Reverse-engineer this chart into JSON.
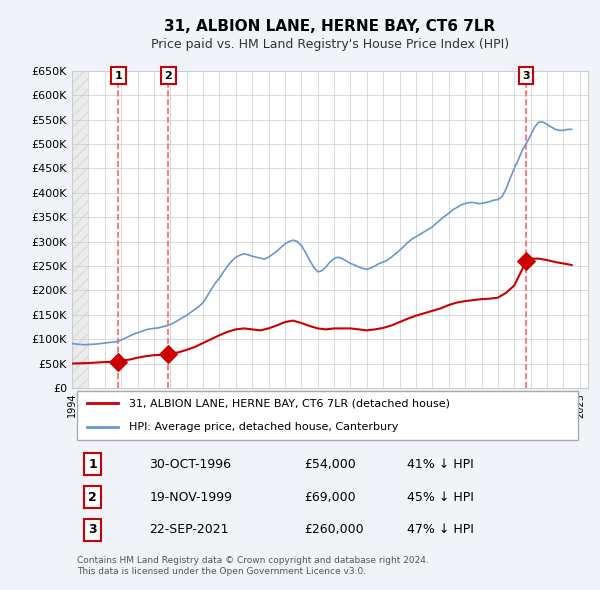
{
  "title": "31, ALBION LANE, HERNE BAY, CT6 7LR",
  "subtitle": "Price paid vs. HM Land Registry's House Price Index (HPI)",
  "legend_line1": "31, ALBION LANE, HERNE BAY, CT6 7LR (detached house)",
  "legend_line2": "HPI: Average price, detached house, Canterbury",
  "footer": "Contains HM Land Registry data © Crown copyright and database right 2024.\nThis data is licensed under the Open Government Licence v3.0.",
  "ylim": [
    0,
    650000
  ],
  "yticks": [
    0,
    50000,
    100000,
    150000,
    200000,
    250000,
    300000,
    350000,
    400000,
    450000,
    500000,
    550000,
    600000,
    650000
  ],
  "ytick_labels": [
    "£0",
    "£50K",
    "£100K",
    "£150K",
    "£200K",
    "£250K",
    "£300K",
    "£350K",
    "£400K",
    "£450K",
    "£500K",
    "£550K",
    "£600K",
    "£650K"
  ],
  "xlim_start": 1994.0,
  "xlim_end": 2025.5,
  "sale_dates": [
    1996.83,
    1999.89,
    2021.73
  ],
  "sale_prices": [
    54000,
    69000,
    260000
  ],
  "sale_labels": [
    "1",
    "2",
    "3"
  ],
  "sale_date_strs": [
    "30-OCT-1996",
    "19-NOV-1999",
    "22-SEP-2021"
  ],
  "sale_price_strs": [
    "£54,000",
    "£69,000",
    "£260,000"
  ],
  "sale_hpi_strs": [
    "41% ↓ HPI",
    "45% ↓ HPI",
    "47% ↓ HPI"
  ],
  "red_line_color": "#cc0000",
  "blue_line_color": "#6699cc",
  "marker_color": "#cc0000",
  "vline_color": "#ff6666",
  "hpi_data_x": [
    1994.0,
    1994.25,
    1994.5,
    1994.75,
    1995.0,
    1995.25,
    1995.5,
    1995.75,
    1996.0,
    1996.25,
    1996.5,
    1996.75,
    1997.0,
    1997.25,
    1997.5,
    1997.75,
    1998.0,
    1998.25,
    1998.5,
    1998.75,
    1999.0,
    1999.25,
    1999.5,
    1999.75,
    2000.0,
    2000.25,
    2000.5,
    2000.75,
    2001.0,
    2001.25,
    2001.5,
    2001.75,
    2002.0,
    2002.25,
    2002.5,
    2002.75,
    2003.0,
    2003.25,
    2003.5,
    2003.75,
    2004.0,
    2004.25,
    2004.5,
    2004.75,
    2005.0,
    2005.25,
    2005.5,
    2005.75,
    2006.0,
    2006.25,
    2006.5,
    2006.75,
    2007.0,
    2007.25,
    2007.5,
    2007.75,
    2008.0,
    2008.25,
    2008.5,
    2008.75,
    2009.0,
    2009.25,
    2009.5,
    2009.75,
    2010.0,
    2010.25,
    2010.5,
    2010.75,
    2011.0,
    2011.25,
    2011.5,
    2011.75,
    2012.0,
    2012.25,
    2012.5,
    2012.75,
    2013.0,
    2013.25,
    2013.5,
    2013.75,
    2014.0,
    2014.25,
    2014.5,
    2014.75,
    2015.0,
    2015.25,
    2015.5,
    2015.75,
    2016.0,
    2016.25,
    2016.5,
    2016.75,
    2017.0,
    2017.25,
    2017.5,
    2017.75,
    2018.0,
    2018.25,
    2018.5,
    2018.75,
    2019.0,
    2019.25,
    2019.5,
    2019.75,
    2020.0,
    2020.25,
    2020.5,
    2020.75,
    2021.0,
    2021.25,
    2021.5,
    2021.75,
    2022.0,
    2022.25,
    2022.5,
    2022.75,
    2023.0,
    2023.25,
    2023.5,
    2023.75,
    2024.0,
    2024.25,
    2024.5
  ],
  "hpi_data_y": [
    91000,
    90000,
    89000,
    88500,
    89000,
    89500,
    90000,
    91000,
    92000,
    93000,
    94000,
    95000,
    98000,
    102000,
    106000,
    110000,
    113000,
    116000,
    119000,
    121000,
    122000,
    123000,
    125000,
    127000,
    130000,
    134000,
    139000,
    144000,
    149000,
    155000,
    161000,
    167000,
    175000,
    188000,
    202000,
    215000,
    225000,
    238000,
    250000,
    260000,
    268000,
    272000,
    275000,
    273000,
    270000,
    268000,
    266000,
    264000,
    268000,
    274000,
    280000,
    288000,
    295000,
    300000,
    303000,
    300000,
    292000,
    278000,
    262000,
    248000,
    238000,
    240000,
    248000,
    258000,
    265000,
    268000,
    265000,
    260000,
    255000,
    252000,
    248000,
    245000,
    243000,
    246000,
    250000,
    255000,
    258000,
    262000,
    268000,
    275000,
    282000,
    290000,
    298000,
    305000,
    310000,
    315000,
    320000,
    325000,
    330000,
    338000,
    345000,
    352000,
    358000,
    365000,
    370000,
    375000,
    378000,
    380000,
    380000,
    378000,
    378000,
    380000,
    382000,
    385000,
    386000,
    392000,
    408000,
    430000,
    450000,
    468000,
    488000,
    502000,
    518000,
    535000,
    545000,
    545000,
    540000,
    535000,
    530000,
    528000,
    528000,
    530000,
    530000
  ],
  "red_line_x": [
    1994.0,
    1994.5,
    1995.0,
    1995.5,
    1996.0,
    1996.83,
    1997.0,
    1997.5,
    1998.0,
    1998.5,
    1999.0,
    1999.5,
    1999.89,
    2000.0,
    2000.5,
    2001.0,
    2001.5,
    2002.0,
    2002.5,
    2003.0,
    2003.5,
    2004.0,
    2004.5,
    2005.0,
    2005.5,
    2006.0,
    2006.5,
    2007.0,
    2007.5,
    2008.0,
    2008.5,
    2009.0,
    2009.5,
    2010.0,
    2010.5,
    2011.0,
    2011.5,
    2012.0,
    2012.5,
    2013.0,
    2013.5,
    2014.0,
    2014.5,
    2015.0,
    2015.5,
    2016.0,
    2016.5,
    2017.0,
    2017.5,
    2018.0,
    2018.5,
    2019.0,
    2019.5,
    2020.0,
    2020.5,
    2021.0,
    2021.73,
    2022.0,
    2022.5,
    2023.0,
    2023.5,
    2024.0,
    2024.5
  ],
  "red_line_y": [
    50000,
    50500,
    51000,
    52000,
    53000,
    54000,
    56000,
    58000,
    62000,
    65000,
    67000,
    68000,
    69000,
    70000,
    73000,
    78000,
    84000,
    92000,
    100000,
    108000,
    115000,
    120000,
    122000,
    120000,
    118000,
    122000,
    128000,
    135000,
    138000,
    133000,
    127000,
    122000,
    120000,
    122000,
    122000,
    122000,
    120000,
    118000,
    120000,
    123000,
    128000,
    135000,
    142000,
    148000,
    153000,
    158000,
    163000,
    170000,
    175000,
    178000,
    180000,
    182000,
    183000,
    185000,
    195000,
    210000,
    260000,
    265000,
    265000,
    262000,
    258000,
    255000,
    252000
  ],
  "background_color": "#f0f4f8",
  "plot_bg_color": "#ffffff"
}
